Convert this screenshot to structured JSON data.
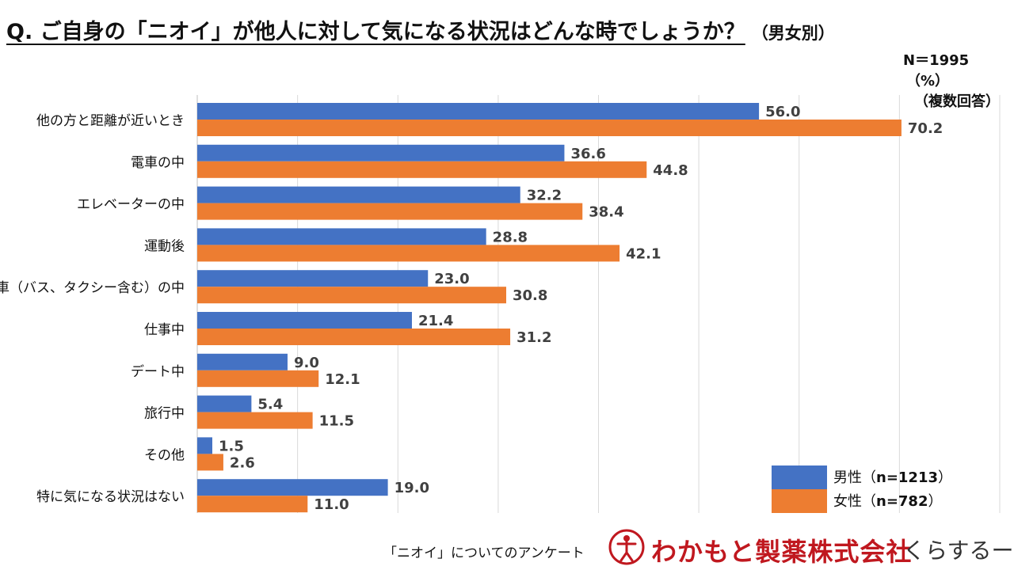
{
  "header": {
    "title": "Q. ご自身の「ニオイ」が他人に対して気になる状況はどんな時でしょうか？",
    "subtitle": "（男女別）"
  },
  "notes": {
    "sample": "N＝1995",
    "unit": "（%）",
    "answer_type": "（複数回答）"
  },
  "chart_data": {
    "type": "bar",
    "orientation": "horizontal",
    "title": "Q. ご自身の「ニオイ」が他人に対して気になる状況はどんな時でしょうか？（男女別）",
    "categories": [
      "他の方と距離が近いとき",
      "電車の中",
      "エレベーターの中",
      "運動後",
      "車（バス、タクシー含む）の中",
      "仕事中",
      "デート中",
      "旅行中",
      "その他",
      "特に気になる状況はない"
    ],
    "series": [
      {
        "name": "男性（n=1213）",
        "name_plain": "男性（",
        "name_count": "n=1213",
        "name_close": "）",
        "color": "#4472c4",
        "values": [
          56.0,
          36.6,
          32.2,
          28.8,
          23.0,
          21.4,
          9.0,
          5.4,
          1.5,
          19.0
        ]
      },
      {
        "name": "女性（n=782）",
        "name_plain": "女性（",
        "name_count": "n=782",
        "name_close": "）",
        "color": "#ed7d31",
        "values": [
          70.2,
          44.8,
          38.4,
          42.1,
          30.8,
          31.2,
          12.1,
          11.5,
          2.6,
          11.0
        ]
      }
    ],
    "xlim": [
      0,
      80
    ],
    "xlabel": "",
    "ylabel": "",
    "grid": true,
    "legend_position": "bottom-right"
  },
  "footer": {
    "caption": "「ニオイ」についてのアンケート",
    "company": "わかもと製薬株式会社",
    "brand": "くらするーむ"
  },
  "colors": {
    "male": "#4472c4",
    "female": "#ed7d31",
    "company": "#c0181f"
  }
}
